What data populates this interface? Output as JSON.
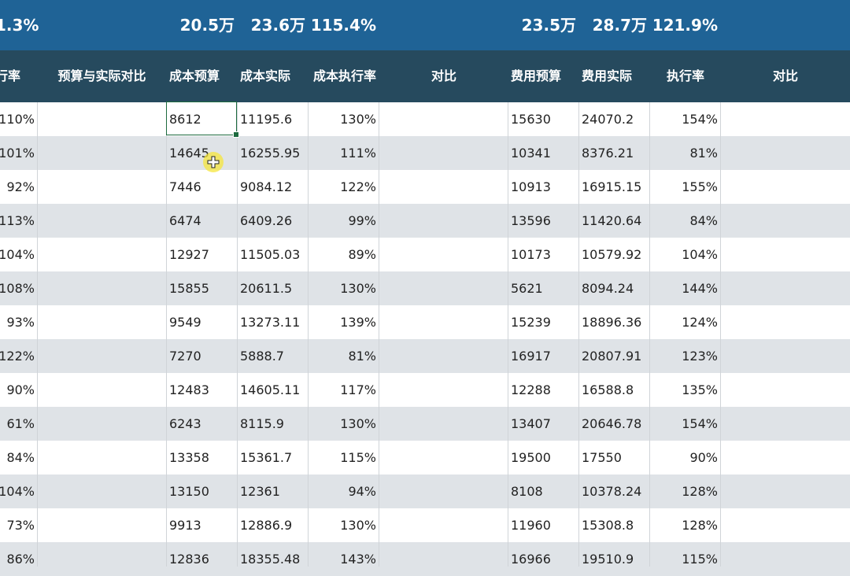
{
  "summary": {
    "total_rate": "1.3%",
    "cost_budget": "20.5万",
    "cost_actual": "23.6万",
    "cost_rate": "115.4%",
    "fee_budget": "23.5万",
    "fee_actual": "28.7万",
    "fee_rate": "121.9%"
  },
  "headers": {
    "exec_rate": "行率",
    "budget_vs_actual": "预算与实际对比",
    "cost_budget": "成本预算",
    "cost_actual": "成本实际",
    "cost_exec_rate": "成本执行率",
    "compare1": "对比",
    "fee_budget": "费用预算",
    "fee_actual": "费用实际",
    "fee_exec_rate": "执行率",
    "compare2": "对比"
  },
  "rows": [
    {
      "rate": "110%",
      "cost_budget": "8612",
      "cost_actual": "11195.6",
      "cost_rate": "130%",
      "fee_budget": "15630",
      "fee_actual": "24070.2",
      "fee_rate": "154%"
    },
    {
      "rate": "101%",
      "cost_budget": "14645",
      "cost_actual": "16255.95",
      "cost_rate": "111%",
      "fee_budget": "10341",
      "fee_actual": "8376.21",
      "fee_rate": "81%"
    },
    {
      "rate": "92%",
      "cost_budget": "7446",
      "cost_actual": "9084.12",
      "cost_rate": "122%",
      "fee_budget": "10913",
      "fee_actual": "16915.15",
      "fee_rate": "155%"
    },
    {
      "rate": "113%",
      "cost_budget": "6474",
      "cost_actual": "6409.26",
      "cost_rate": "99%",
      "fee_budget": "13596",
      "fee_actual": "11420.64",
      "fee_rate": "84%"
    },
    {
      "rate": "104%",
      "cost_budget": "12927",
      "cost_actual": "11505.03",
      "cost_rate": "89%",
      "fee_budget": "10173",
      "fee_actual": "10579.92",
      "fee_rate": "104%"
    },
    {
      "rate": "108%",
      "cost_budget": "15855",
      "cost_actual": "20611.5",
      "cost_rate": "130%",
      "fee_budget": "5621",
      "fee_actual": "8094.24",
      "fee_rate": "144%"
    },
    {
      "rate": "93%",
      "cost_budget": "9549",
      "cost_actual": "13273.11",
      "cost_rate": "139%",
      "fee_budget": "15239",
      "fee_actual": "18896.36",
      "fee_rate": "124%"
    },
    {
      "rate": "122%",
      "cost_budget": "7270",
      "cost_actual": "5888.7",
      "cost_rate": "81%",
      "fee_budget": "16917",
      "fee_actual": "20807.91",
      "fee_rate": "123%"
    },
    {
      "rate": "90%",
      "cost_budget": "12483",
      "cost_actual": "14605.11",
      "cost_rate": "117%",
      "fee_budget": "12288",
      "fee_actual": "16588.8",
      "fee_rate": "135%"
    },
    {
      "rate": "61%",
      "cost_budget": "6243",
      "cost_actual": "8115.9",
      "cost_rate": "130%",
      "fee_budget": "13407",
      "fee_actual": "20646.78",
      "fee_rate": "154%"
    },
    {
      "rate": "84%",
      "cost_budget": "13358",
      "cost_actual": "15361.7",
      "cost_rate": "115%",
      "fee_budget": "19500",
      "fee_actual": "17550",
      "fee_rate": "90%"
    },
    {
      "rate": "104%",
      "cost_budget": "13150",
      "cost_actual": "12361",
      "cost_rate": "94%",
      "fee_budget": "8108",
      "fee_actual": "10378.24",
      "fee_rate": "128%"
    },
    {
      "rate": "73%",
      "cost_budget": "9913",
      "cost_actual": "12886.9",
      "cost_rate": "130%",
      "fee_budget": "11960",
      "fee_actual": "15308.8",
      "fee_rate": "128%"
    },
    {
      "rate": "86%",
      "cost_budget": "12836",
      "cost_actual": "18355.48",
      "cost_rate": "143%",
      "fee_budget": "16966",
      "fee_actual": "19510.9",
      "fee_rate": "115%"
    }
  ],
  "selected_cell_value": "8612",
  "colors": {
    "summary_bg": "#1f6396",
    "header_bg": "#264a5e",
    "stripe": "#dfe3e7",
    "selection": "#1d6b3f",
    "cursor": "#f5e63c"
  }
}
